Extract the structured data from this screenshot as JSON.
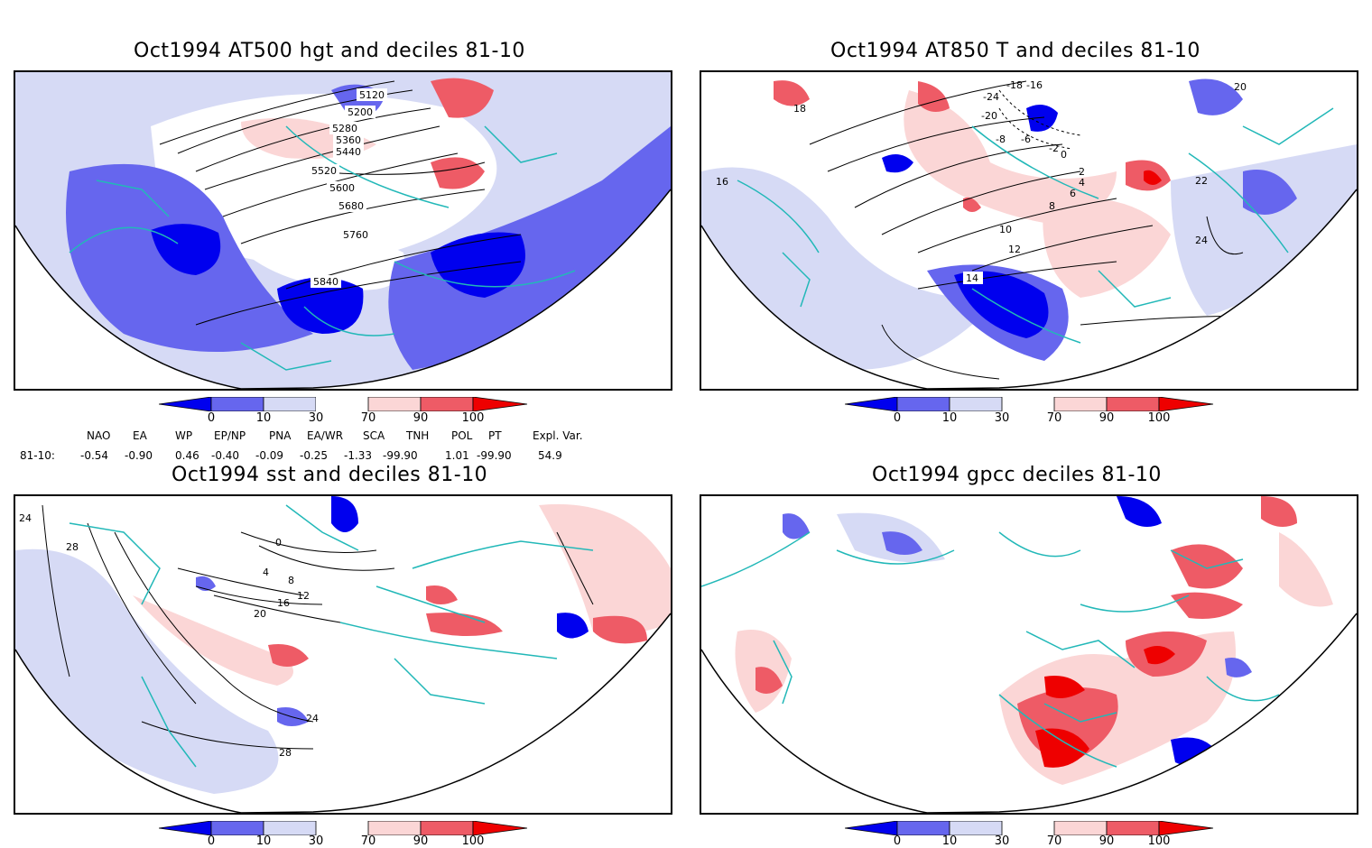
{
  "colors": {
    "blue_dark": "#0000ee",
    "blue_mid": "#6666ee",
    "blue_light": "#d6daf5",
    "red_light": "#fbd6d6",
    "red_mid": "#ee5b66",
    "red_dark": "#ee0000",
    "coast": "#22b8b8",
    "contour": "#000000"
  },
  "legend": {
    "ticks": [
      "0",
      "10",
      "30",
      "70",
      "90",
      "100"
    ]
  },
  "panels": [
    {
      "id": "hgt",
      "title": "Oct1994 AT500 hgt and deciles 81-10",
      "contour_labels": [
        "5120",
        "5200",
        "5280",
        "5360",
        "5440",
        "5520",
        "5600",
        "5680",
        "5760",
        "5840"
      ]
    },
    {
      "id": "t850",
      "title": "Oct1994 AT850 T and deciles 81-10",
      "contour_labels": [
        "-18",
        "-24",
        "-16",
        "-20",
        "-8",
        "-6",
        "-2",
        "0",
        "2",
        "4",
        "6",
        "8",
        "10",
        "12",
        "14",
        "16",
        "18",
        "20",
        "22",
        "24"
      ]
    },
    {
      "id": "sst",
      "title": "Oct1994 sst and deciles 81-10",
      "contour_labels": [
        "24",
        "28",
        "0",
        "4",
        "8",
        "12",
        "16",
        "20"
      ]
    },
    {
      "id": "gpcc",
      "title": "Oct1994 gpcc deciles 81-10",
      "contour_labels": []
    }
  ],
  "indices": {
    "headers": [
      "NAO",
      "EA",
      "WP",
      "EP/NP",
      "PNA",
      "EA/WR",
      "SCA",
      "TNH",
      "POL",
      "PT",
      "Expl. Var."
    ],
    "row_label": "81-10:",
    "values": [
      "-0.54",
      "-0.90",
      "0.46",
      "-0.40",
      "-0.09",
      "-0.25",
      "-1.33",
      "-99.90",
      "1.01",
      "-99.90",
      "54.9"
    ]
  }
}
